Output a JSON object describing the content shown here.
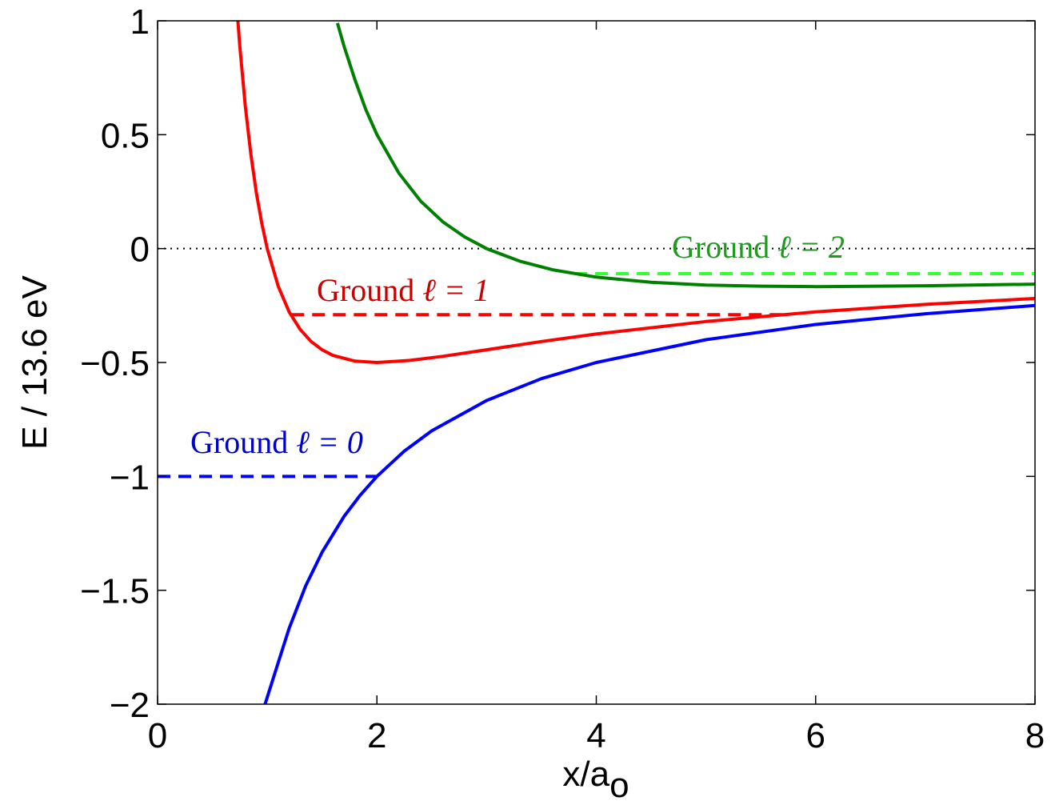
{
  "chart_data": {
    "type": "line",
    "title": "",
    "xlabel_main": "x/a",
    "xlabel_sub": "o",
    "ylabel": "E / 13.6 eV",
    "xlim": [
      0,
      8
    ],
    "ylim": [
      -2,
      1
    ],
    "xticks": [
      0,
      2,
      4,
      6,
      8
    ],
    "xtick_labels": [
      "0",
      "2",
      "4",
      "6",
      "8"
    ],
    "yticks": [
      1,
      0.5,
      0,
      -0.5,
      -1,
      -1.5,
      -2
    ],
    "ytick_labels": [
      "1",
      "0.5",
      "0",
      "−0.5",
      "−1",
      "−1.5",
      "−2"
    ],
    "grid": false,
    "series": [
      {
        "color": "#0000ff",
        "x": [
          0.98,
          1.1,
          1.2,
          1.35,
          1.5,
          1.7,
          1.85,
          2.0,
          2.25,
          2.5,
          3.0,
          3.5,
          4.0,
          5.0,
          6.0,
          7.0,
          8.0
        ],
        "y": [
          -2.0,
          -1.818,
          -1.667,
          -1.481,
          -1.333,
          -1.176,
          -1.081,
          -1.0,
          -0.889,
          -0.8,
          -0.667,
          -0.571,
          -0.5,
          -0.4,
          -0.333,
          -0.286,
          -0.25
        ]
      },
      {
        "color": "#ff0000",
        "x": [
          0.72,
          0.75,
          0.8,
          0.85,
          0.9,
          0.95,
          1.0,
          1.1,
          1.2,
          1.3,
          1.4,
          1.5,
          1.6,
          1.8,
          2.0,
          2.3,
          2.6,
          3.0,
          3.5,
          4.0,
          5.0,
          6.0,
          7.0,
          8.0
        ],
        "y": [
          1.08,
          0.889,
          0.625,
          0.415,
          0.247,
          0.111,
          0.0,
          -0.165,
          -0.278,
          -0.355,
          -0.408,
          -0.444,
          -0.469,
          -0.494,
          -0.5,
          -0.491,
          -0.473,
          -0.444,
          -0.408,
          -0.375,
          -0.32,
          -0.278,
          -0.245,
          -0.219
        ]
      },
      {
        "color": "#008000",
        "x": [
          1.64,
          1.7,
          1.8,
          1.9,
          2.0,
          2.2,
          2.4,
          2.6,
          2.8,
          3.0,
          3.3,
          3.6,
          4.0,
          4.5,
          5.0,
          5.5,
          6.0,
          7.0,
          8.0
        ],
        "y": [
          0.99,
          0.889,
          0.741,
          0.609,
          0.5,
          0.331,
          0.208,
          0.118,
          0.051,
          0.0,
          -0.055,
          -0.093,
          -0.125,
          -0.148,
          -0.16,
          -0.165,
          -0.167,
          -0.163,
          -0.156
        ]
      }
    ],
    "levels": [
      {
        "label_text": "Ground",
        "label_math": "ℓ = 0",
        "y": -1.0,
        "x_start": 0,
        "x_end": 2.0,
        "color": "#0000ff",
        "label_color": "#0000c8"
      },
      {
        "label_text": "Ground",
        "label_math": "ℓ = 1",
        "y": -0.29,
        "x_start": 1.22,
        "x_end": 5.7,
        "color": "#ff0000",
        "label_color": "#c80000"
      },
      {
        "label_text": "Ground",
        "label_math": "ℓ = 2",
        "y": -0.11,
        "x_start": 3.8,
        "x_end": 8.0,
        "color": "#33ff33",
        "label_color": "#1e9a1e"
      }
    ],
    "zero_line": {
      "y": 0,
      "color": "#000000"
    }
  }
}
